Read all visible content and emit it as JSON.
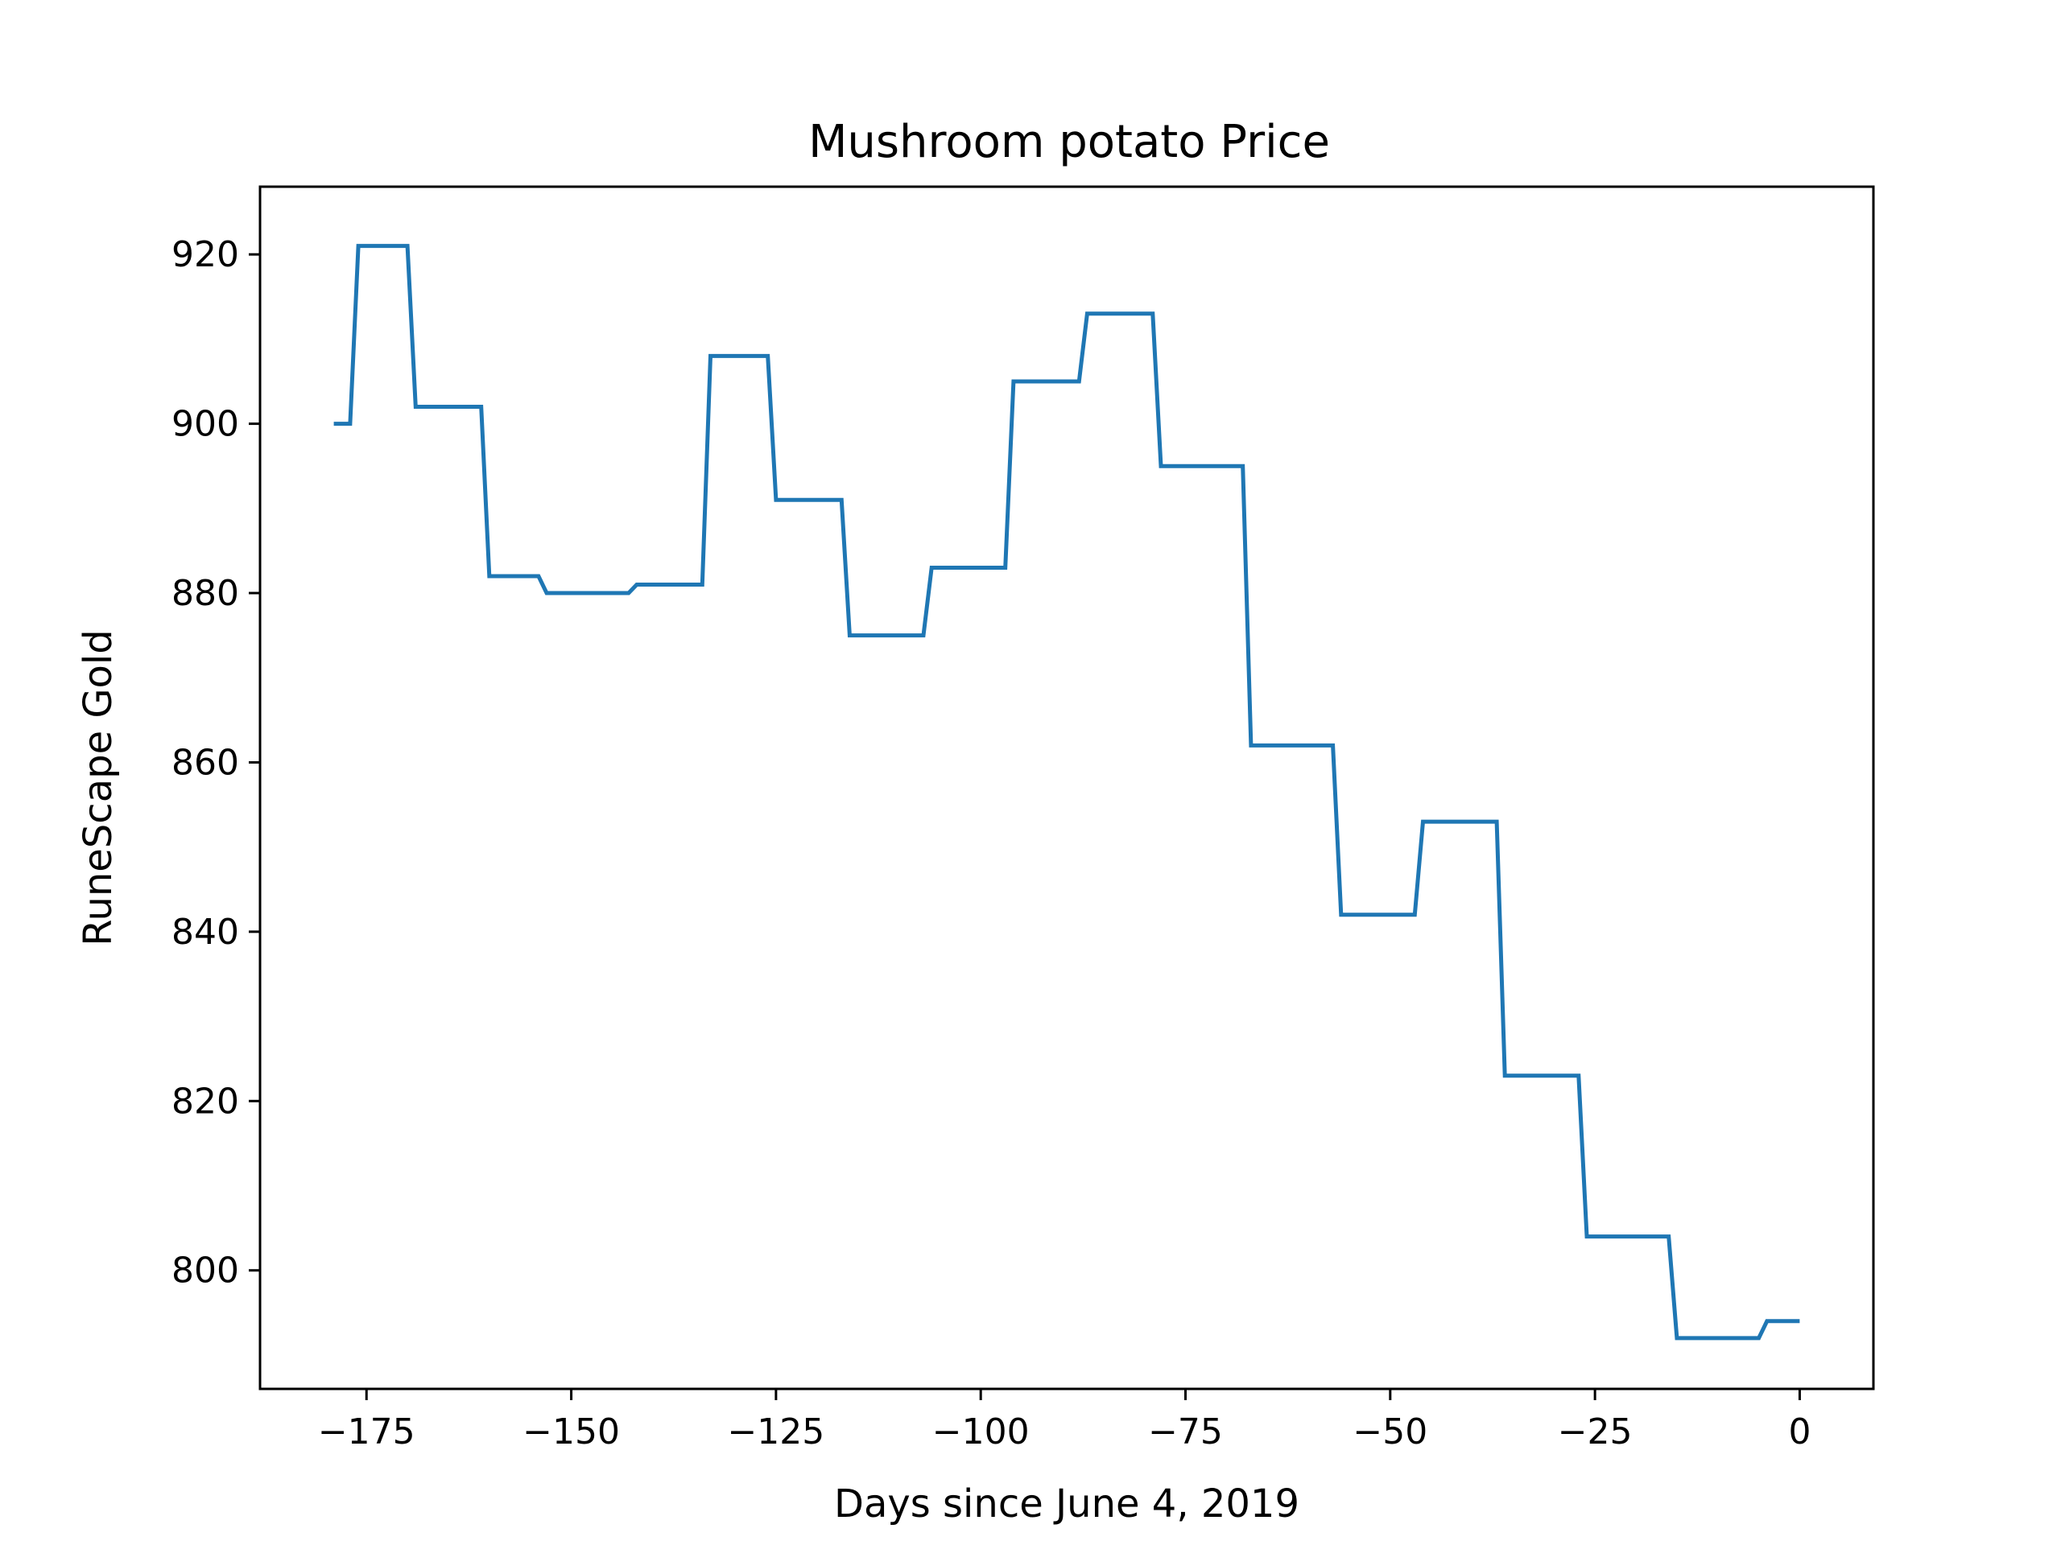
{
  "chart_data": {
    "type": "line",
    "title": "Mushroom potato Price",
    "xlabel": "Days since June 4, 2019",
    "ylabel": "RuneScape Gold",
    "xlim": [
      -188,
      9
    ],
    "ylim": [
      786,
      928
    ],
    "x_ticks": [
      -175,
      -150,
      -125,
      -100,
      -75,
      -50,
      -25,
      0
    ],
    "x_tick_labels": [
      "−175",
      "−150",
      "−125",
      "−100",
      "−75",
      "−50",
      "−25",
      "0"
    ],
    "y_ticks": [
      800,
      820,
      840,
      860,
      880,
      900,
      920
    ],
    "y_tick_labels": [
      "800",
      "820",
      "840",
      "860",
      "880",
      "900",
      "920"
    ],
    "grid": false,
    "line_color": "#1f77b4",
    "series": [
      {
        "x": [
          -179,
          -177,
          -176,
          -175,
          -170,
          -169,
          -168,
          -161,
          -160,
          -159,
          -154,
          -153,
          -152,
          -143,
          -142,
          -141,
          -134,
          -133,
          -132,
          -126,
          -125,
          -124,
          -117,
          -116,
          -115,
          -107,
          -106,
          -105,
          -97,
          -96,
          -95,
          -88,
          -87,
          -86,
          -79,
          -78,
          -77,
          -68,
          -67,
          -66,
          -57,
          -56,
          -55,
          -47,
          -46,
          -45,
          -37,
          -36,
          -35,
          -27,
          -26,
          -25,
          -16,
          -15,
          -14,
          -5,
          -4,
          -3,
          0
        ],
        "y": [
          900,
          900,
          921,
          921,
          921,
          902,
          902,
          902,
          882,
          882,
          882,
          880,
          880,
          880,
          881,
          881,
          881,
          908,
          908,
          908,
          891,
          891,
          891,
          875,
          875,
          875,
          883,
          883,
          883,
          905,
          905,
          905,
          913,
          913,
          913,
          895,
          895,
          895,
          862,
          862,
          862,
          842,
          842,
          842,
          853,
          853,
          853,
          823,
          823,
          823,
          804,
          804,
          804,
          792,
          792,
          792,
          794,
          794,
          794
        ]
      }
    ]
  }
}
